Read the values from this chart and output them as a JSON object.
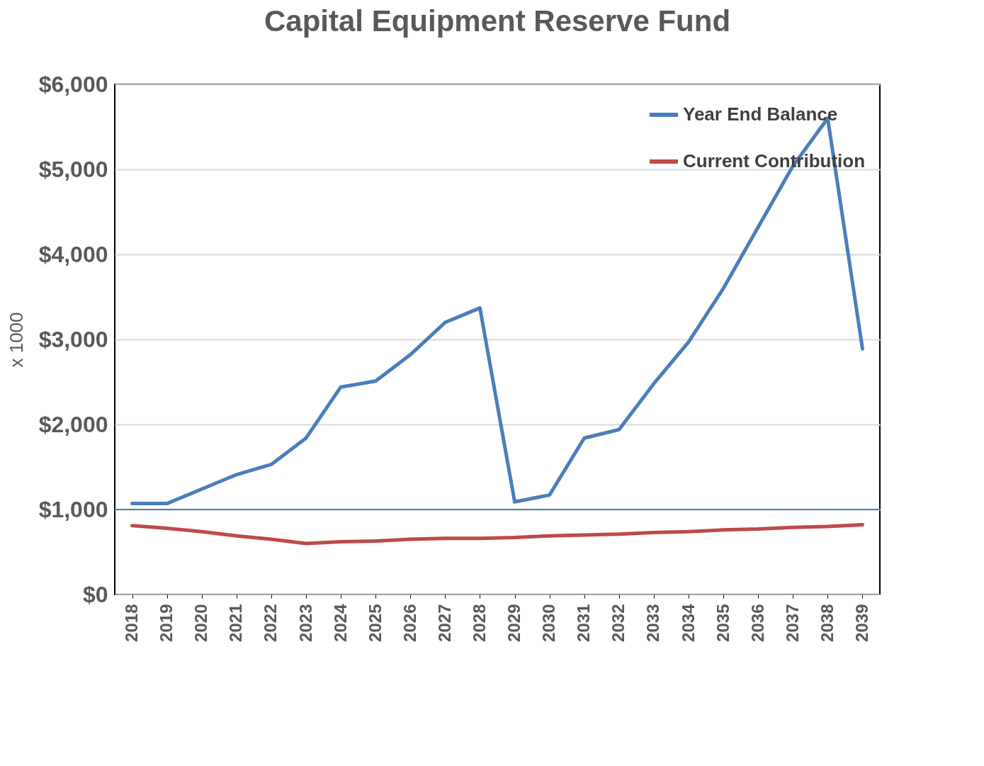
{
  "chart_data": {
    "type": "line",
    "title": "Capital Equipment Reserve Fund",
    "ylabel": "x 1000",
    "categories": [
      "2018",
      "2019",
      "2020",
      "2021",
      "2022",
      "2023",
      "2024",
      "2025",
      "2026",
      "2027",
      "2028",
      "2029",
      "2030",
      "2031",
      "2032",
      "2033",
      "2034",
      "2035",
      "2036",
      "2037",
      "2038",
      "2039"
    ],
    "series": [
      {
        "name": "Year End Balance",
        "color": "#4a7ebb",
        "values": [
          1070,
          1070,
          1240,
          1410,
          1530,
          1840,
          2440,
          2510,
          2820,
          3200,
          3370,
          1090,
          1170,
          1840,
          1940,
          2480,
          2970,
          3600,
          4320,
          5040,
          5600,
          2890
        ]
      },
      {
        "name": "Current Contribution",
        "color": "#be4b48",
        "values": [
          810,
          780,
          740,
          690,
          650,
          600,
          620,
          630,
          650,
          660,
          660,
          670,
          690,
          700,
          710,
          730,
          740,
          760,
          770,
          790,
          800,
          820
        ]
      }
    ],
    "ylim": [
      0,
      6000
    ],
    "yticks": [
      {
        "value": 0,
        "label": "$0"
      },
      {
        "value": 1000,
        "label": "$1,000"
      },
      {
        "value": 2000,
        "label": "$2,000"
      },
      {
        "value": 3000,
        "label": "$3,000"
      },
      {
        "value": 4000,
        "label": "$4,000"
      },
      {
        "value": 5000,
        "label": "$5,000"
      },
      {
        "value": 6000,
        "label": "$6,000"
      }
    ],
    "ref_lines": [
      {
        "axis": "y",
        "value": 1000,
        "color": "#4a7ebb"
      }
    ],
    "grid": "y",
    "legend": "top right",
    "line_style": "solid",
    "marker": "none"
  }
}
